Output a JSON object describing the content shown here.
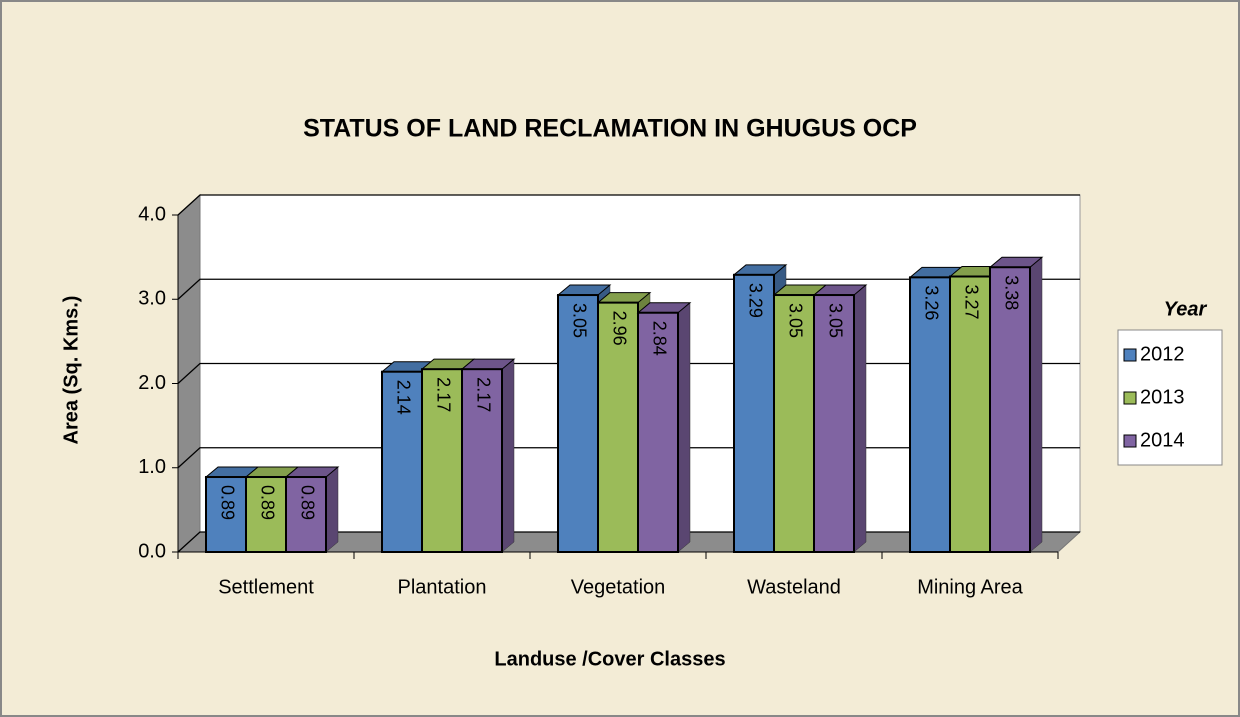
{
  "chart_data": {
    "type": "bar3d",
    "title": "STATUS OF LAND RECLAMATION IN GHUGUS OCP",
    "x_label": "Landuse /Cover Classes",
    "y_label": "Area (Sq. Kms.)",
    "categories": [
      "Settlement",
      "Plantation",
      "Vegetation",
      "Wasteland",
      "Mining Area"
    ],
    "series": [
      {
        "name": "2012",
        "color": "#4f81bd",
        "values": [
          0.89,
          2.14,
          3.05,
          3.29,
          3.26
        ]
      },
      {
        "name": "2013",
        "color": "#9bbb59",
        "values": [
          0.89,
          2.17,
          2.96,
          3.05,
          3.27
        ]
      },
      {
        "name": "2014",
        "color": "#8064a2",
        "values": [
          0.89,
          2.17,
          2.84,
          3.05,
          3.38
        ]
      }
    ],
    "legend_title": "Year",
    "legend": "right",
    "grid": true,
    "ylim": [
      0,
      4
    ],
    "yticks": [
      {
        "value": 0,
        "label": "0.0"
      },
      {
        "value": 1,
        "label": "1.0"
      },
      {
        "value": 2,
        "label": "2.0"
      },
      {
        "value": 3,
        "label": "3.0"
      },
      {
        "value": 4,
        "label": "4.0"
      }
    ]
  }
}
